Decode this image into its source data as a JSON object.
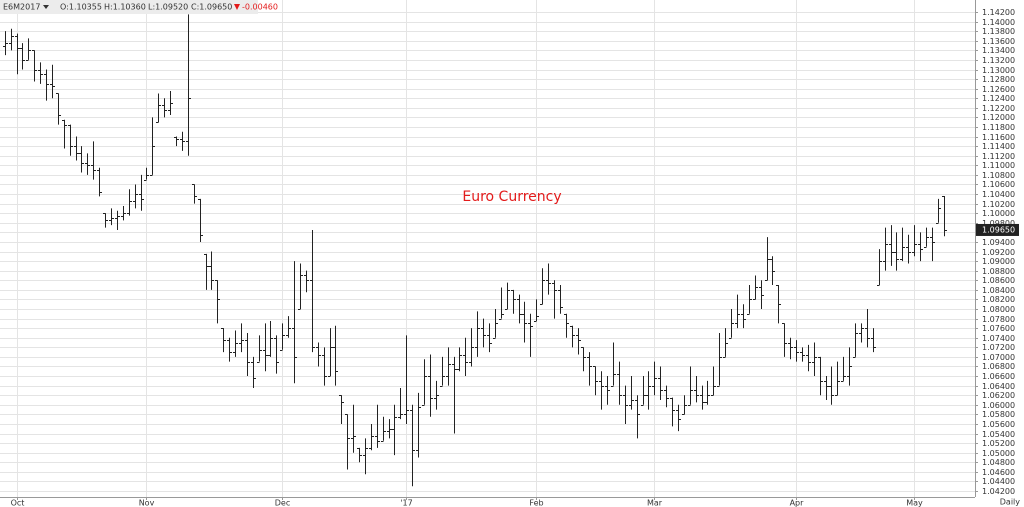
{
  "chart_data": {
    "type": "ohlc",
    "header": {
      "symbol": "E6M2017",
      "open": "O:1.10355",
      "high": "H:1.10360",
      "low": "L:1.09520",
      "close": "C:1.09650",
      "change": "-0.00460"
    },
    "watermark": "Euro Currency",
    "period": "Daily",
    "last_price_label": "1.09650",
    "color": "#222222",
    "grid": true,
    "xlim": [
      -0.8,
      164.3
    ],
    "xticks": [
      {
        "value": 2,
        "label": "Oct"
      },
      {
        "value": 24,
        "label": "Nov"
      },
      {
        "value": 47,
        "label": "Dec"
      },
      {
        "value": 68,
        "label": "'17"
      },
      {
        "value": 90,
        "label": "Feb"
      },
      {
        "value": 110,
        "label": "Mar"
      },
      {
        "value": 134,
        "label": "Apr"
      },
      {
        "value": 154,
        "label": "May"
      }
    ],
    "ylim": [
      1.04075,
      1.14451
    ],
    "yticks": [
      {
        "value": 1.042,
        "label": "1.04200"
      },
      {
        "value": 1.044,
        "label": "1.04400"
      },
      {
        "value": 1.046,
        "label": "1.04600"
      },
      {
        "value": 1.048,
        "label": "1.04800"
      },
      {
        "value": 1.05,
        "label": "1.05000"
      },
      {
        "value": 1.052,
        "label": "1.05200"
      },
      {
        "value": 1.054,
        "label": "1.05400"
      },
      {
        "value": 1.056,
        "label": "1.05600"
      },
      {
        "value": 1.058,
        "label": "1.05800"
      },
      {
        "value": 1.06,
        "label": "1.06000"
      },
      {
        "value": 1.062,
        "label": "1.06200"
      },
      {
        "value": 1.064,
        "label": "1.06400"
      },
      {
        "value": 1.066,
        "label": "1.06600"
      },
      {
        "value": 1.068,
        "label": "1.06800"
      },
      {
        "value": 1.07,
        "label": "1.07000"
      },
      {
        "value": 1.072,
        "label": "1.07200"
      },
      {
        "value": 1.074,
        "label": "1.07400"
      },
      {
        "value": 1.076,
        "label": "1.07600"
      },
      {
        "value": 1.078,
        "label": "1.07800"
      },
      {
        "value": 1.08,
        "label": "1.08000"
      },
      {
        "value": 1.082,
        "label": "1.08200"
      },
      {
        "value": 1.084,
        "label": "1.08400"
      },
      {
        "value": 1.086,
        "label": "1.08600"
      },
      {
        "value": 1.088,
        "label": "1.08800"
      },
      {
        "value": 1.09,
        "label": "1.09000"
      },
      {
        "value": 1.092,
        "label": "1.09200"
      },
      {
        "value": 1.094,
        "label": "1.09400"
      },
      {
        "value": 1.096,
        "label": "1.09600"
      },
      {
        "value": 1.098,
        "label": "1.09800"
      },
      {
        "value": 1.1,
        "label": "1.10000"
      },
      {
        "value": 1.102,
        "label": "1.10200"
      },
      {
        "value": 1.104,
        "label": "1.10400"
      },
      {
        "value": 1.106,
        "label": "1.10600"
      },
      {
        "value": 1.108,
        "label": "1.10800"
      },
      {
        "value": 1.11,
        "label": "1.11000"
      },
      {
        "value": 1.112,
        "label": "1.11200"
      },
      {
        "value": 1.114,
        "label": "1.11400"
      },
      {
        "value": 1.116,
        "label": "1.11600"
      },
      {
        "value": 1.118,
        "label": "1.11800"
      },
      {
        "value": 1.12,
        "label": "1.12000"
      },
      {
        "value": 1.122,
        "label": "1.12200"
      },
      {
        "value": 1.124,
        "label": "1.12400"
      },
      {
        "value": 1.126,
        "label": "1.12600"
      },
      {
        "value": 1.128,
        "label": "1.12800"
      },
      {
        "value": 1.13,
        "label": "1.13000"
      },
      {
        "value": 1.132,
        "label": "1.13200"
      },
      {
        "value": 1.134,
        "label": "1.13400"
      },
      {
        "value": 1.136,
        "label": "1.13600"
      },
      {
        "value": 1.138,
        "label": "1.13800"
      },
      {
        "value": 1.14,
        "label": "1.14000"
      },
      {
        "value": 1.142,
        "label": "1.14200"
      }
    ],
    "ohlc": [
      [
        1.135,
        1.138,
        1.133,
        1.1355
      ],
      [
        1.1355,
        1.1385,
        1.134,
        1.137
      ],
      [
        1.137,
        1.1375,
        1.129,
        1.1345
      ],
      [
        1.1345,
        1.1355,
        1.13,
        1.132
      ],
      [
        1.132,
        1.1365,
        1.132,
        1.134
      ],
      [
        1.134,
        1.134,
        1.1275,
        1.13
      ],
      [
        1.13,
        1.1315,
        1.127,
        1.129
      ],
      [
        1.129,
        1.13,
        1.1235,
        1.127
      ],
      [
        1.127,
        1.131,
        1.124,
        1.1265
      ],
      [
        1.125,
        1.125,
        1.1185,
        1.1205
      ],
      [
        1.1195,
        1.1195,
        1.1135,
        1.1185
      ],
      [
        1.1185,
        1.1185,
        1.112,
        1.114
      ],
      [
        1.114,
        1.116,
        1.111,
        1.1125
      ],
      [
        1.1125,
        1.114,
        1.1085,
        1.1105
      ],
      [
        1.1105,
        1.1125,
        1.108,
        1.11
      ],
      [
        1.11,
        1.115,
        1.107,
        1.109
      ],
      [
        1.109,
        1.1095,
        1.1035,
        1.1045
      ],
      [
        1.1,
        1.1,
        1.097,
        1.0985
      ],
      [
        1.0985,
        1.101,
        1.0975,
        1.099
      ],
      [
        1.099,
        1.1005,
        1.0965,
        1.0995
      ],
      [
        1.0995,
        1.1015,
        1.0985,
        1.1
      ],
      [
        1.1,
        1.105,
        1.0995,
        1.1025
      ],
      [
        1.1025,
        1.106,
        1.101,
        1.104
      ],
      [
        1.104,
        1.108,
        1.1005,
        1.103
      ],
      [
        1.107,
        1.1095,
        1.107,
        1.108
      ],
      [
        1.108,
        1.12,
        1.108,
        1.114
      ],
      [
        1.119,
        1.125,
        1.119,
        1.1225
      ],
      [
        1.1225,
        1.124,
        1.12,
        1.1215
      ],
      [
        1.1215,
        1.1255,
        1.1205,
        1.123
      ],
      [
        1.116,
        1.116,
        1.114,
        1.1155
      ],
      [
        1.1155,
        1.117,
        1.113,
        1.115
      ],
      [
        1.115,
        1.1415,
        1.112,
        1.124
      ],
      [
        1.106,
        1.106,
        1.102,
        1.1035
      ],
      [
        1.103,
        1.103,
        1.094,
        1.0955
      ],
      [
        1.0915,
        1.0915,
        1.084,
        1.089
      ],
      [
        1.089,
        1.092,
        1.084,
        1.086
      ],
      [
        1.086,
        1.086,
        1.077,
        1.082
      ],
      [
        1.076,
        1.076,
        1.071,
        1.0735
      ],
      [
        1.0735,
        1.074,
        1.069,
        1.071
      ],
      [
        1.071,
        1.0755,
        1.07,
        1.073
      ],
      [
        1.073,
        1.077,
        1.071,
        1.0735
      ],
      [
        1.0735,
        1.075,
        1.066,
        1.069
      ],
      [
        1.069,
        1.07,
        1.0635,
        1.0655
      ],
      [
        1.069,
        1.0745,
        1.069,
        1.0715
      ],
      [
        1.0715,
        1.077,
        1.067,
        1.0705
      ],
      [
        1.0705,
        1.0775,
        1.07,
        1.074
      ],
      [
        1.074,
        1.0745,
        1.0665,
        1.069
      ],
      [
        1.0715,
        1.077,
        1.0715,
        1.0745
      ],
      [
        1.0745,
        1.0785,
        1.074,
        1.076
      ],
      [
        1.076,
        1.09,
        1.0645,
        1.07
      ],
      [
        1.08,
        1.0895,
        1.08,
        1.087
      ],
      [
        1.087,
        1.088,
        1.0835,
        1.086
      ],
      [
        1.086,
        1.0965,
        1.071,
        1.072
      ],
      [
        1.072,
        1.073,
        1.068,
        1.0705
      ],
      [
        1.0705,
        1.072,
        1.064,
        1.066
      ],
      [
        1.066,
        1.076,
        1.066,
        1.072
      ],
      [
        1.072,
        1.0765,
        1.064,
        1.067
      ],
      [
        1.062,
        1.062,
        1.056,
        1.0605
      ],
      [
        1.058,
        1.058,
        1.0465,
        1.053
      ],
      [
        1.053,
        1.06,
        1.05,
        1.0535
      ],
      [
        1.051,
        1.051,
        1.048,
        1.0495
      ],
      [
        1.0495,
        1.053,
        1.0455,
        1.051
      ],
      [
        1.051,
        1.056,
        1.0505,
        1.0535
      ],
      [
        1.0535,
        1.06,
        1.051,
        1.0525
      ],
      [
        1.0525,
        1.0575,
        1.0525,
        1.0545
      ],
      [
        1.0545,
        1.057,
        1.053,
        1.055
      ],
      [
        1.055,
        1.06,
        1.0495,
        1.0575
      ],
      [
        1.0575,
        1.0635,
        1.057,
        1.058
      ],
      [
        1.058,
        1.0745,
        1.056,
        1.059
      ],
      [
        1.059,
        1.06,
        1.043,
        1.0505
      ],
      [
        1.0505,
        1.0625,
        1.049,
        1.0595
      ],
      [
        1.06,
        1.0695,
        1.06,
        1.066
      ],
      [
        1.066,
        1.0705,
        1.0575,
        1.0615
      ],
      [
        1.0615,
        1.065,
        1.059,
        1.062
      ],
      [
        1.064,
        1.07,
        1.064,
        1.066
      ],
      [
        1.066,
        1.072,
        1.064,
        1.0685
      ],
      [
        1.0685,
        1.07,
        1.054,
        1.0675
      ],
      [
        1.0675,
        1.072,
        1.067,
        1.0705
      ],
      [
        1.0705,
        1.074,
        1.066,
        1.069
      ],
      [
        1.069,
        1.076,
        1.068,
        1.072
      ],
      [
        1.072,
        1.0795,
        1.07,
        1.076
      ],
      [
        1.076,
        1.078,
        1.072,
        1.0745
      ],
      [
        1.0745,
        1.077,
        1.071,
        1.073
      ],
      [
        1.074,
        1.08,
        1.074,
        1.077
      ],
      [
        1.078,
        1.0845,
        1.078,
        1.079
      ],
      [
        1.08,
        1.0855,
        1.08,
        1.084
      ],
      [
        1.084,
        1.084,
        1.079,
        1.082
      ],
      [
        1.082,
        1.083,
        1.077,
        1.079
      ],
      [
        1.079,
        1.0815,
        1.073,
        1.077
      ],
      [
        1.077,
        1.079,
        1.07,
        1.0765
      ],
      [
        1.0775,
        1.082,
        1.0775,
        1.0785
      ],
      [
        1.081,
        1.0885,
        1.081,
        1.086
      ],
      [
        1.086,
        1.0895,
        1.083,
        1.0855
      ],
      [
        1.0855,
        1.086,
        1.078,
        1.084
      ],
      [
        1.084,
        1.085,
        1.079,
        1.0805
      ],
      [
        1.079,
        1.079,
        1.074,
        1.077
      ],
      [
        1.0765,
        1.0765,
        1.072,
        1.0745
      ],
      [
        1.0745,
        1.076,
        1.0705,
        1.0735
      ],
      [
        1.072,
        1.072,
        1.067,
        1.07
      ],
      [
        1.07,
        1.071,
        1.064,
        1.068
      ],
      [
        1.068,
        1.068,
        1.062,
        1.065
      ],
      [
        1.065,
        1.067,
        1.059,
        1.064
      ],
      [
        1.064,
        1.066,
        1.06,
        1.063
      ],
      [
        1.064,
        1.073,
        1.064,
        1.0665
      ],
      [
        1.0665,
        1.069,
        1.06,
        1.062
      ],
      [
        1.062,
        1.064,
        1.056,
        1.06
      ],
      [
        1.06,
        1.066,
        1.059,
        1.061
      ],
      [
        1.061,
        1.062,
        1.053,
        1.058
      ],
      [
        1.06,
        1.066,
        1.06,
        1.062
      ],
      [
        1.062,
        1.067,
        1.059,
        1.064
      ],
      [
        1.064,
        1.069,
        1.062,
        1.0655
      ],
      [
        1.0655,
        1.068,
        1.061,
        1.063
      ],
      [
        1.063,
        1.064,
        1.0595,
        1.0615
      ],
      [
        1.0615,
        1.0615,
        1.0555,
        1.059
      ],
      [
        1.059,
        1.06,
        1.0545,
        1.057
      ],
      [
        1.058,
        1.062,
        1.058,
        1.06
      ],
      [
        1.06,
        1.068,
        1.06,
        1.063
      ],
      [
        1.063,
        1.066,
        1.0605,
        1.062
      ],
      [
        1.062,
        1.064,
        1.059,
        1.0605
      ],
      [
        1.0605,
        1.065,
        1.06,
        1.062
      ],
      [
        1.062,
        1.068,
        1.062,
        1.064
      ],
      [
        1.064,
        1.075,
        1.064,
        1.07
      ],
      [
        1.07,
        1.076,
        1.07,
        1.073
      ],
      [
        1.074,
        1.08,
        1.074,
        1.077
      ],
      [
        1.077,
        1.083,
        1.076,
        1.079
      ],
      [
        1.079,
        1.081,
        1.076,
        1.078
      ],
      [
        1.079,
        1.085,
        1.079,
        1.082
      ],
      [
        1.082,
        1.087,
        1.082,
        1.0845
      ],
      [
        1.0845,
        1.086,
        1.08,
        1.083
      ],
      [
        1.086,
        1.095,
        1.086,
        1.0905
      ],
      [
        1.0905,
        1.091,
        1.085,
        1.088
      ],
      [
        1.085,
        1.085,
        1.077,
        1.081
      ],
      [
        1.077,
        1.077,
        1.07,
        1.073
      ],
      [
        1.073,
        1.074,
        1.0695,
        1.072
      ],
      [
        1.072,
        1.0735,
        1.069,
        1.071
      ],
      [
        1.071,
        1.072,
        1.069,
        1.0705
      ],
      [
        1.0705,
        1.0725,
        1.067,
        1.069
      ],
      [
        1.069,
        1.073,
        1.066,
        1.07
      ],
      [
        1.07,
        1.07,
        1.062,
        1.065
      ],
      [
        1.065,
        1.066,
        1.061,
        1.064
      ],
      [
        1.064,
        1.068,
        1.06,
        1.062
      ],
      [
        1.062,
        1.069,
        1.062,
        1.065
      ],
      [
        1.065,
        1.07,
        1.065,
        1.066
      ],
      [
        1.066,
        1.072,
        1.064,
        1.068
      ],
      [
        1.07,
        1.077,
        1.07,
        1.075
      ],
      [
        1.075,
        1.077,
        1.073,
        1.076
      ],
      [
        1.076,
        1.08,
        1.072,
        1.074
      ],
      [
        1.074,
        1.076,
        1.071,
        1.072
      ],
      [
        1.085,
        1.0925,
        1.085,
        1.09
      ],
      [
        1.09,
        1.097,
        1.088,
        1.0935
      ],
      [
        1.0935,
        1.0975,
        1.089,
        1.092
      ],
      [
        1.092,
        1.096,
        1.088,
        1.0905
      ],
      [
        1.0905,
        1.097,
        1.09,
        1.093
      ],
      [
        1.093,
        1.0955,
        1.0895,
        1.092
      ],
      [
        1.092,
        1.0975,
        1.091,
        1.0935
      ],
      [
        1.0935,
        1.096,
        1.09,
        1.0925
      ],
      [
        1.093,
        1.097,
        1.093,
        1.095
      ],
      [
        1.095,
        1.097,
        1.09,
        1.094
      ],
      [
        1.098,
        1.103,
        1.098,
        1.1011
      ],
      [
        1.10355,
        1.1036,
        1.0952,
        1.0965
      ]
    ]
  }
}
